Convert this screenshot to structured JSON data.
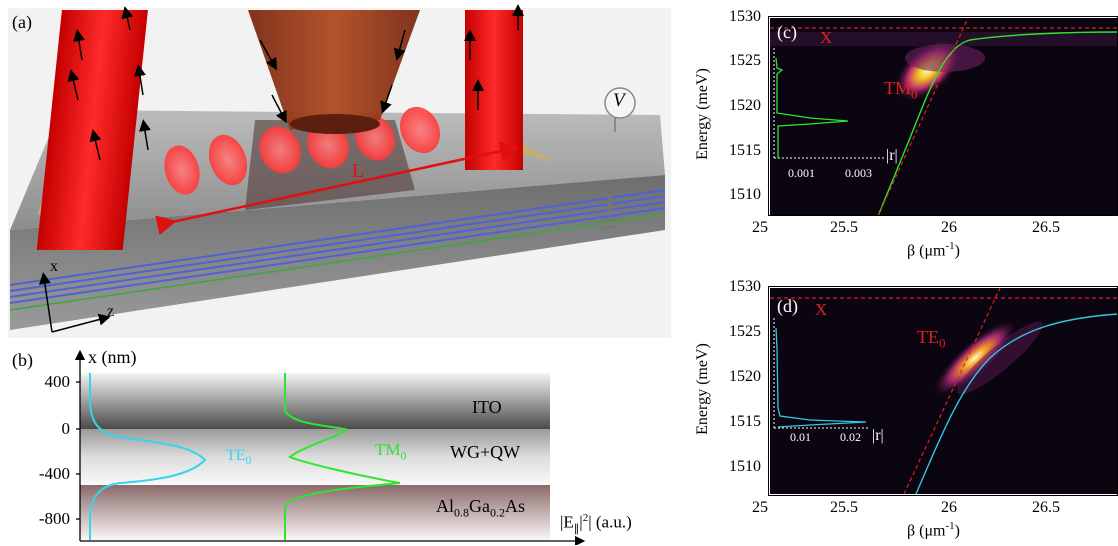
{
  "panel_a": {
    "label": "(a)",
    "length_label": "L",
    "voltage_label": "V",
    "axis_x": "x",
    "axis_z": "z"
  },
  "panel_b": {
    "label": "(b)",
    "y_axis_label": "x (nm)",
    "y_ticks": [
      "400",
      "0",
      "-400",
      "-800"
    ],
    "layers": [
      "ITO",
      "WG+QW",
      "Al",
      "0.8",
      "Ga",
      "0.2",
      "As"
    ],
    "mode_te": "TE",
    "mode_tm": "TM",
    "sub0": "0",
    "x_axis_label_main": "|E",
    "x_axis_sub": "∥",
    "x_axis_sup": "2",
    "x_axis_rest": "| (a.u.)",
    "colors": {
      "te": "#33d6e8",
      "tm": "#2ee62e"
    }
  },
  "panel_c": {
    "label": "(c)",
    "ylabel": "Energy (meV)",
    "xlabel_main": "β (μm",
    "xlabel_sup": "-1",
    "xlabel_end": ")",
    "xticks": [
      "25",
      "25.5",
      "26",
      "26.5"
    ],
    "yticks": [
      "1530",
      "1525",
      "1520",
      "1515",
      "1510"
    ],
    "exciton": "X",
    "mode_main": "TM",
    "mode_sub": "0",
    "inset_r": "|r|",
    "inset_ticks": [
      "0.001",
      "0.003"
    ]
  },
  "panel_d": {
    "label": "(d)",
    "ylabel": "Energy (meV)",
    "xlabel_main": "β (μm",
    "xlabel_sup": "-1",
    "xlabel_end": ")",
    "xticks": [
      "25",
      "25.5",
      "26",
      "26.5"
    ],
    "yticks": [
      "1530",
      "1525",
      "1520",
      "1515",
      "1510"
    ],
    "exciton": "X",
    "mode_main": "TE",
    "mode_sub": "0",
    "inset_r": "|r|",
    "inset_ticks": [
      "0.01",
      "0.02"
    ]
  }
}
